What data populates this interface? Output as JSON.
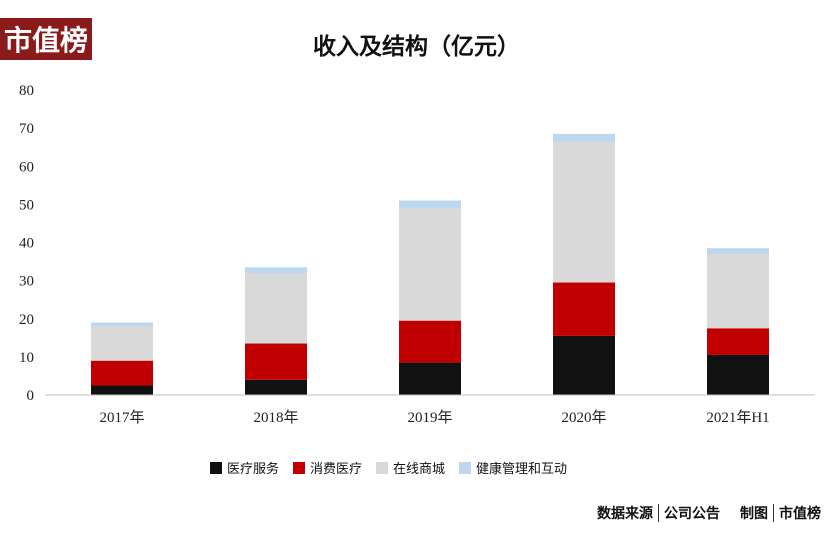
{
  "logo": {
    "text": "市值榜"
  },
  "chart_data": {
    "type": "bar",
    "stacked": true,
    "title": "收入及结构（亿元）",
    "categories": [
      "2017年",
      "2018年",
      "2019年",
      "2020年",
      "2021年H1"
    ],
    "ylim": [
      0,
      80
    ],
    "yticks": [
      0,
      10,
      20,
      30,
      40,
      50,
      60,
      70,
      80
    ],
    "grid": false,
    "legend_position": "bottom",
    "series": [
      {
        "name": "医疗服务",
        "color": "#111111",
        "values": [
          2.5,
          4,
          8.5,
          15.5,
          10.5
        ]
      },
      {
        "name": "消费医疗",
        "color": "#c00000",
        "values": [
          6.5,
          9.5,
          11,
          14,
          7
        ]
      },
      {
        "name": "在线商城",
        "color": "#d9d9d9",
        "values": [
          9,
          18.5,
          29.5,
          37,
          19.5
        ]
      },
      {
        "name": "健康管理和互动",
        "color": "#bdd7ee",
        "values": [
          1,
          1.5,
          2,
          2,
          1.5
        ]
      }
    ]
  },
  "footer": {
    "source_label": "数据来源",
    "source_value": "公司公告",
    "maker_label": "制图",
    "maker_value": "市值榜"
  }
}
